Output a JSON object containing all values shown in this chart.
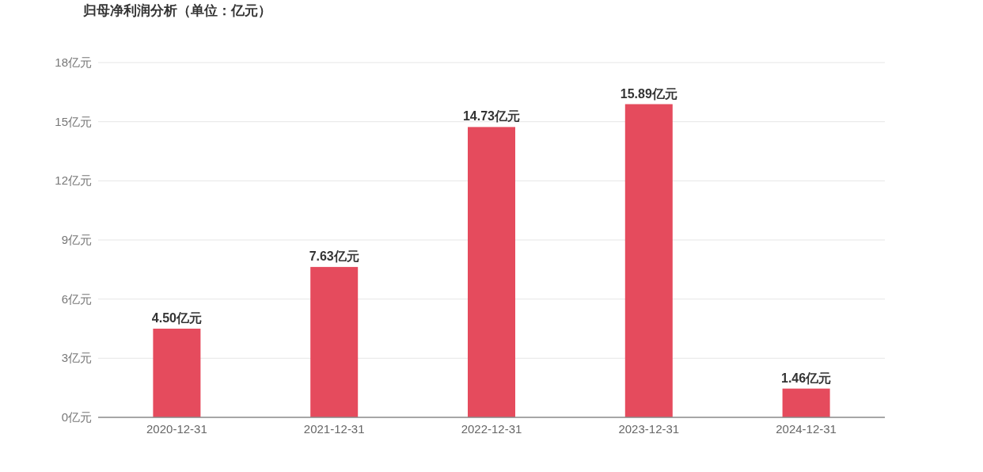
{
  "chart_data": {
    "type": "bar",
    "title": "归母净利润分析（单位：亿元）",
    "categories": [
      "2020-12-31",
      "2021-12-31",
      "2022-12-31",
      "2023-12-31",
      "2024-12-31"
    ],
    "values": [
      4.5,
      7.63,
      14.73,
      15.89,
      1.46
    ],
    "value_labels": [
      "4.50亿元",
      "7.63亿元",
      "14.73亿元",
      "15.89亿元",
      "1.46亿元"
    ],
    "color": "#e54b5d",
    "ylim": [
      0,
      18
    ],
    "yticks": [
      {
        "value": 0,
        "label": "0亿元"
      },
      {
        "value": 3,
        "label": "3亿元"
      },
      {
        "value": 6,
        "label": "6亿元"
      },
      {
        "value": 9,
        "label": "9亿元"
      },
      {
        "value": 12,
        "label": "12亿元"
      },
      {
        "value": 15,
        "label": "15亿元"
      },
      {
        "value": 18,
        "label": "18亿元"
      }
    ],
    "grid": "y"
  }
}
